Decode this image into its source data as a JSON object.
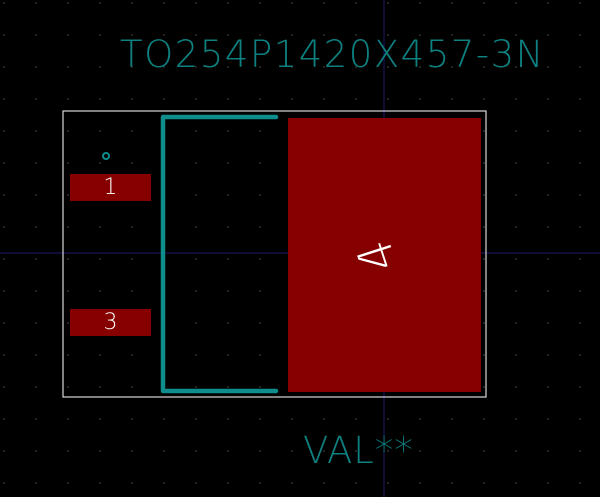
{
  "footprint": {
    "reference": "TO254P1420X457-3N",
    "value": "VAL**"
  },
  "pads": [
    {
      "number": "1"
    },
    {
      "number": "3"
    },
    {
      "number": "4"
    }
  ],
  "colors": {
    "background": "#000000",
    "grid_dot": "#3a3a3a",
    "crosshair": "#1a1a6a",
    "silkscreen": "#0f8c8c",
    "silk_text": "#0f8080",
    "courtyard": "#d8d8d8",
    "pad_copper": "#860000",
    "pad_text": "#ffffff"
  }
}
